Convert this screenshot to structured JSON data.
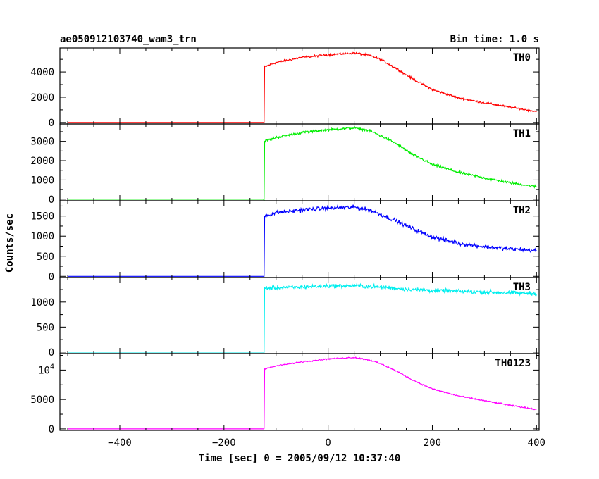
{
  "title": "ae050912103740_wam3_trn",
  "bin_label": "Bin time: 1.0 s",
  "xlabel": "Time [sec] 0 = 2005/09/12 10:37:40",
  "ylabel": "Counts/sec",
  "chart_data": {
    "type": "line",
    "x_range": [
      -515,
      405
    ],
    "x_ticks": [
      -400,
      -200,
      0,
      200,
      400
    ],
    "x_tick_labels": [
      "−400",
      "−200",
      "0",
      "200",
      "400"
    ],
    "bin_time_s": 1.0,
    "x_start": -500,
    "x_end": 400,
    "onset_time": -123,
    "grid": false,
    "panels": [
      {
        "name": "TH0",
        "color": "#ff0000",
        "ylim": [
          -120,
          5900
        ],
        "y_ticks": [
          0,
          2000,
          4000
        ],
        "y_tick_labels": [
          "0",
          "2000",
          "4000"
        ],
        "pre_level": 0,
        "noise": 90,
        "profile": [
          [
            -123,
            0
          ],
          [
            -122,
            4400
          ],
          [
            -100,
            4750
          ],
          [
            -50,
            5150
          ],
          [
            0,
            5350
          ],
          [
            50,
            5500
          ],
          [
            80,
            5300
          ],
          [
            100,
            5000
          ],
          [
            130,
            4300
          ],
          [
            160,
            3500
          ],
          [
            200,
            2600
          ],
          [
            250,
            1950
          ],
          [
            300,
            1550
          ],
          [
            350,
            1200
          ],
          [
            400,
            870
          ]
        ]
      },
      {
        "name": "TH1",
        "color": "#00ee00",
        "ylim": [
          -80,
          3900
        ],
        "y_ticks": [
          0,
          1000,
          2000,
          3000
        ],
        "y_tick_labels": [
          "0",
          "1000",
          "2000",
          "3000"
        ],
        "pre_level": 0,
        "noise": 70,
        "profile": [
          [
            -123,
            0
          ],
          [
            -122,
            3000
          ],
          [
            -100,
            3200
          ],
          [
            -50,
            3450
          ],
          [
            0,
            3600
          ],
          [
            50,
            3700
          ],
          [
            80,
            3550
          ],
          [
            100,
            3300
          ],
          [
            130,
            2900
          ],
          [
            160,
            2350
          ],
          [
            200,
            1800
          ],
          [
            250,
            1400
          ],
          [
            300,
            1100
          ],
          [
            350,
            850
          ],
          [
            400,
            650
          ]
        ]
      },
      {
        "name": "TH2",
        "color": "#0000ff",
        "ylim": [
          -30,
          1880
        ],
        "y_ticks": [
          0,
          500,
          1000,
          1500
        ],
        "y_tick_labels": [
          "0",
          "500",
          "1000",
          "1500"
        ],
        "pre_level": 0,
        "noise": 55,
        "profile": [
          [
            -123,
            0
          ],
          [
            -122,
            1500
          ],
          [
            -100,
            1580
          ],
          [
            -50,
            1650
          ],
          [
            0,
            1700
          ],
          [
            50,
            1720
          ],
          [
            80,
            1650
          ],
          [
            100,
            1540
          ],
          [
            130,
            1380
          ],
          [
            160,
            1200
          ],
          [
            200,
            980
          ],
          [
            250,
            820
          ],
          [
            300,
            740
          ],
          [
            350,
            680
          ],
          [
            400,
            640
          ]
        ]
      },
      {
        "name": "TH3",
        "color": "#00eeee",
        "ylim": [
          -30,
          1490
        ],
        "y_ticks": [
          0,
          500,
          1000
        ],
        "y_tick_labels": [
          "0",
          "500",
          "1000"
        ],
        "pre_level": 0,
        "noise": 45,
        "profile": [
          [
            -123,
            0
          ],
          [
            -122,
            1280
          ],
          [
            -50,
            1300
          ],
          [
            0,
            1320
          ],
          [
            50,
            1330
          ],
          [
            100,
            1300
          ],
          [
            150,
            1260
          ],
          [
            200,
            1230
          ],
          [
            300,
            1200
          ],
          [
            400,
            1170
          ]
        ]
      },
      {
        "name": "TH0123",
        "color": "#ff00ff",
        "ylim": [
          -250,
          12800
        ],
        "y_ticks": [
          0,
          5000,
          10000
        ],
        "y_tick_labels": [
          "0",
          "5000",
          "10^4"
        ],
        "pre_level": 0,
        "noise": 120,
        "profile": [
          [
            -123,
            0
          ],
          [
            -122,
            10200
          ],
          [
            -100,
            10700
          ],
          [
            -50,
            11400
          ],
          [
            0,
            11900
          ],
          [
            50,
            12150
          ],
          [
            80,
            11700
          ],
          [
            100,
            11100
          ],
          [
            130,
            9900
          ],
          [
            160,
            8400
          ],
          [
            200,
            6800
          ],
          [
            250,
            5600
          ],
          [
            300,
            4800
          ],
          [
            350,
            4000
          ],
          [
            400,
            3300
          ]
        ]
      }
    ]
  }
}
